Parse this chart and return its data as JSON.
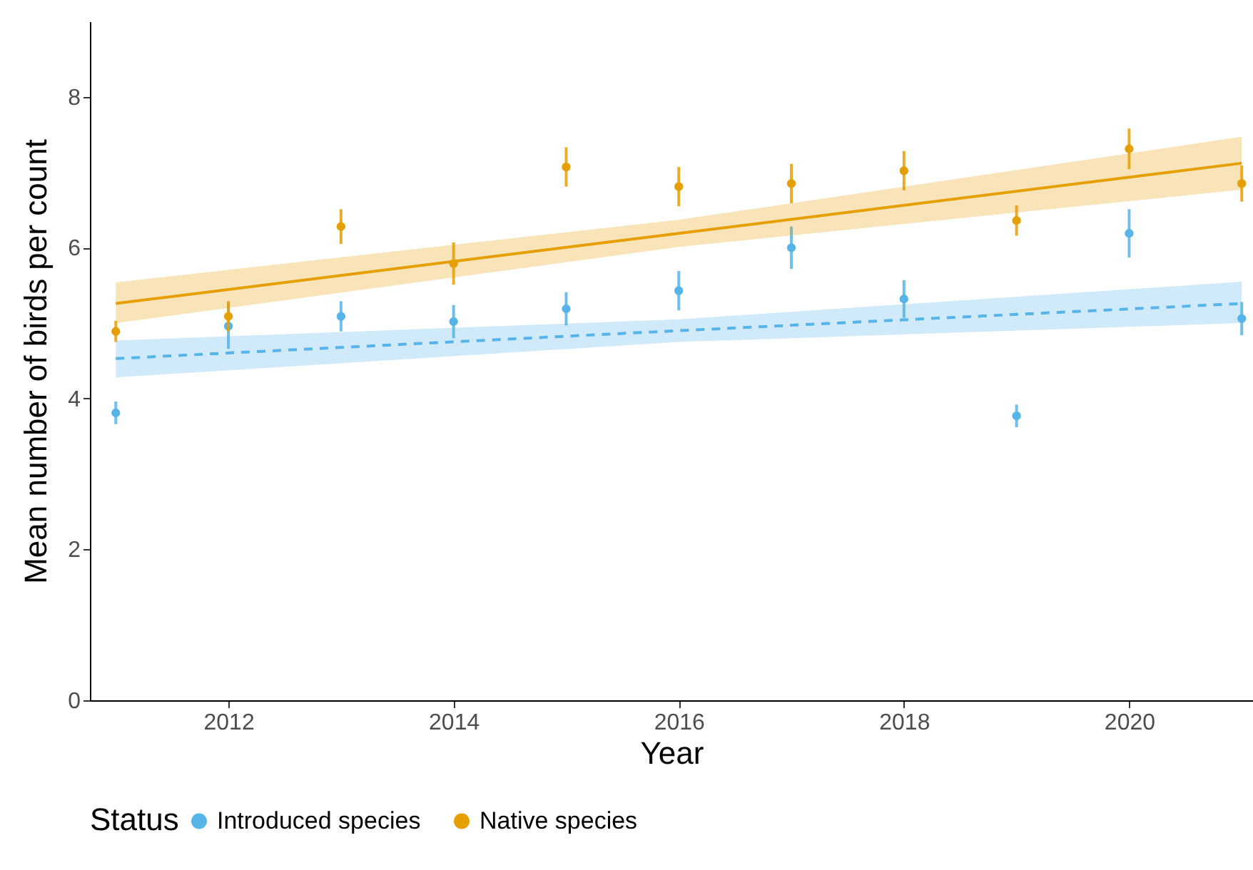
{
  "chart_data": {
    "type": "scatter",
    "xlabel": "Year",
    "ylabel": "Mean number of birds per count",
    "legend_title": "Status",
    "x": [
      2011,
      2012,
      2013,
      2014,
      2015,
      2016,
      2017,
      2018,
      2019,
      2020,
      2021
    ],
    "series": [
      {
        "name": "Introduced species",
        "color": "#56b4e9",
        "values": [
          3.81,
          4.96,
          5.09,
          5.02,
          5.19,
          5.43,
          6.0,
          5.32,
          3.77,
          6.19,
          5.06
        ],
        "errors": [
          0.15,
          0.3,
          0.2,
          0.22,
          0.22,
          0.26,
          0.28,
          0.25,
          0.15,
          0.32,
          0.22
        ]
      },
      {
        "name": "Native species",
        "color": "#e69f00",
        "values": [
          4.89,
          5.09,
          6.28,
          5.79,
          7.07,
          6.81,
          6.85,
          7.02,
          6.36,
          7.31,
          6.85
        ],
        "errors": [
          0.14,
          0.2,
          0.23,
          0.28,
          0.26,
          0.26,
          0.26,
          0.26,
          0.2,
          0.27,
          0.24
        ]
      },
      {
        "type": "line",
        "color": "#56b4e9",
        "line_style": "dashed",
        "marker": "none",
        "x": [
          2011,
          2016,
          2021
        ],
        "values": [
          4.53,
          4.9,
          5.26
        ],
        "lower": [
          4.28,
          4.75,
          5.0
        ],
        "upper": [
          4.77,
          5.05,
          5.55
        ]
      },
      {
        "type": "line",
        "color": "#e69f00",
        "line_style": "solid",
        "marker": "none",
        "x": [
          2011,
          2016,
          2021
        ],
        "values": [
          5.26,
          6.19,
          7.12
        ],
        "lower": [
          5.0,
          6.01,
          6.77
        ],
        "upper": [
          5.54,
          6.37,
          7.47
        ]
      }
    ],
    "xlim": [
      2010.77,
      2021.1
    ],
    "xticks": [
      2012,
      2014,
      2016,
      2018,
      2020
    ],
    "ylim": [
      0,
      9
    ],
    "yticks": [
      0,
      2,
      4,
      6,
      8
    ],
    "grid": false,
    "legend": "bottom",
    "marker": "circle"
  }
}
